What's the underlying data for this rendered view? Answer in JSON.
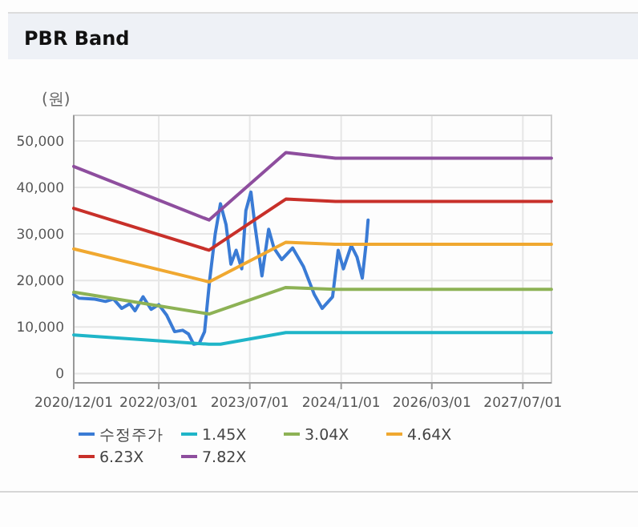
{
  "chart_data": {
    "type": "line",
    "title": "PBR Band",
    "ylabel": "(원)",
    "xlim": [
      "2020-12-01",
      "2027-12-01"
    ],
    "xticks": [
      {
        "value": "2020-12-01",
        "label": "2020/12/01"
      },
      {
        "value": "2022-03-01",
        "label": "2022/03/01"
      },
      {
        "value": "2023-07-01",
        "label": "2023/07/01"
      },
      {
        "value": "2024-11-01",
        "label": "2024/11/01"
      },
      {
        "value": "2026-03-01",
        "label": "2026/03/01"
      },
      {
        "value": "2027-07-01",
        "label": "2027/07/01"
      }
    ],
    "ylim": [
      -2000,
      55500
    ],
    "yticks": [
      0,
      {
        "value": 10000,
        "label": "10,000"
      },
      {
        "value": 20000,
        "label": "20,000"
      },
      {
        "value": 30000,
        "label": "30,000"
      },
      {
        "value": 40000,
        "label": "40,000"
      },
      {
        "value": 50000,
        "label": "50,000"
      }
    ],
    "grid": true,
    "legend": "bottom",
    "marker": "none",
    "line_style": "solid",
    "series": [
      {
        "name": "수정주가",
        "color": "#3a7bd5",
        "x": [
          "2020-12-01",
          "2020-12-29",
          "2021-03-24",
          "2021-05-20",
          "2021-07-02",
          "2021-08-15",
          "2021-09-27",
          "2021-10-25",
          "2021-12-07",
          "2022-01-19",
          "2022-03-01",
          "2022-04-13",
          "2022-05-25",
          "2022-07-07",
          "2022-08-07",
          "2022-09-04",
          "2022-10-04",
          "2022-11-01",
          "2022-11-28",
          "2022-12-28",
          "2023-01-25",
          "2023-02-24",
          "2023-03-22",
          "2023-04-19",
          "2023-05-19",
          "2023-06-10",
          "2023-07-07",
          "2023-07-28",
          "2023-09-04",
          "2023-10-10",
          "2023-11-07",
          "2023-12-19",
          "2024-02-15",
          "2024-04-13",
          "2024-06-10",
          "2024-07-22",
          "2024-09-16",
          "2024-10-16",
          "2024-11-13",
          "2024-12-25",
          "2025-01-25",
          "2025-02-22",
          "2025-03-16",
          "2025-03-25"
        ],
        "values": [
          17000,
          16200,
          16000,
          15500,
          16000,
          14000,
          15000,
          13500,
          16500,
          13800,
          14800,
          12500,
          9000,
          9300,
          8500,
          6300,
          6500,
          9000,
          20000,
          30000,
          36500,
          32000,
          23500,
          26500,
          22500,
          35000,
          39000,
          32000,
          21000,
          31000,
          27000,
          24500,
          27000,
          23000,
          17000,
          14000,
          16500,
          26500,
          22500,
          27500,
          25000,
          20500,
          28500,
          33000
        ]
      },
      {
        "name": "1.45X",
        "color": "#1fb5c8",
        "x": [
          "2020-12-01",
          "2022-11-25",
          "2023-01-25",
          "2024-01-10",
          "2027-12-01"
        ],
        "values": [
          8300,
          6300,
          6300,
          8800,
          8800
        ]
      },
      {
        "name": "3.04X",
        "color": "#8db255",
        "x": [
          "2020-12-01",
          "2022-11-25",
          "2024-01-10",
          "2024-10-01",
          "2027-12-01"
        ],
        "values": [
          17500,
          12800,
          18500,
          18100,
          18100
        ]
      },
      {
        "name": "4.64X",
        "color": "#f0a830",
        "x": [
          "2020-12-01",
          "2022-11-25",
          "2024-01-10",
          "2024-10-01",
          "2027-12-01"
        ],
        "values": [
          26800,
          19700,
          28200,
          27800,
          27800
        ]
      },
      {
        "name": "6.23X",
        "color": "#c8302a",
        "x": [
          "2020-12-01",
          "2022-11-25",
          "2024-01-10",
          "2024-10-01",
          "2027-12-01"
        ],
        "values": [
          35500,
          26500,
          37500,
          37000,
          37000
        ]
      },
      {
        "name": "7.82X",
        "color": "#8e4e9e",
        "x": [
          "2020-12-01",
          "2022-11-25",
          "2024-01-10",
          "2024-10-01",
          "2027-12-01"
        ],
        "values": [
          44500,
          33000,
          47500,
          46300,
          46300
        ]
      }
    ]
  }
}
